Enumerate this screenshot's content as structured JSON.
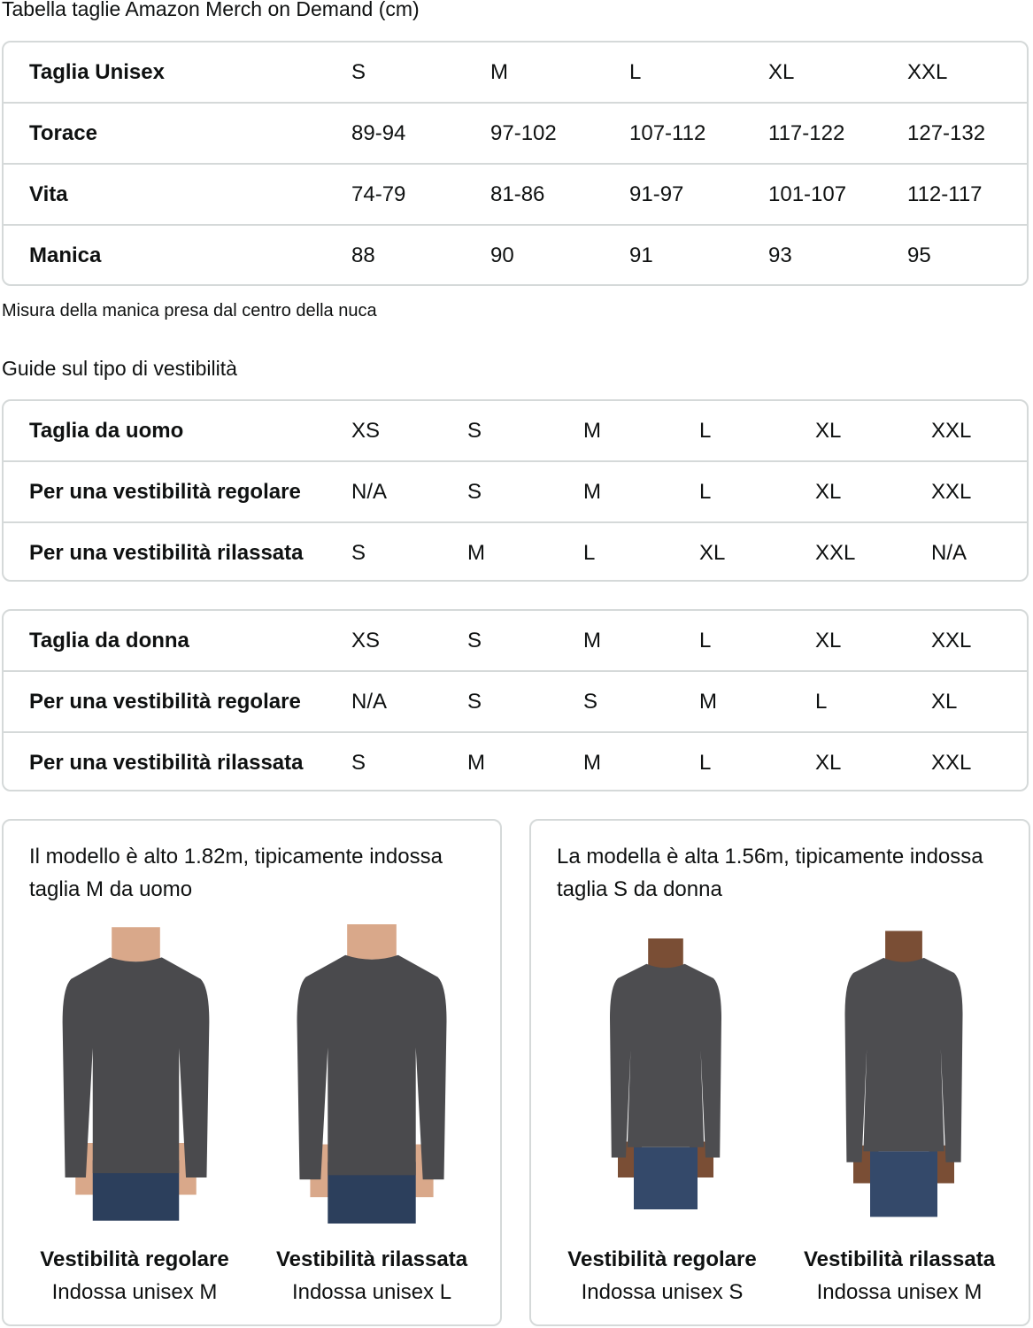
{
  "unisex_table": {
    "title": "Tabella taglie Amazon Merch on Demand (cm)",
    "rows": [
      {
        "label": "Taglia Unisex",
        "values": [
          "S",
          "M",
          "L",
          "XL",
          "XXL"
        ]
      },
      {
        "label": "Torace",
        "values": [
          "89-94",
          "97-102",
          "107-112",
          "117-122",
          "127-132"
        ]
      },
      {
        "label": "Vita",
        "values": [
          "74-79",
          "81-86",
          "91-97",
          "101-107",
          "112-117"
        ]
      },
      {
        "label": "Manica",
        "values": [
          "88",
          "90",
          "91",
          "93",
          "95"
        ]
      }
    ],
    "note": "Misura della manica presa dal centro della nuca"
  },
  "fit_guide": {
    "title": "Guide sul tipo di vestibilità",
    "men": [
      {
        "label": "Taglia da uomo",
        "values": [
          "XS",
          "S",
          "M",
          "L",
          "XL",
          "XXL"
        ]
      },
      {
        "label": "Per una vestibilità regolare",
        "values": [
          "N/A",
          "S",
          "M",
          "L",
          "XL",
          "XXL"
        ]
      },
      {
        "label": "Per una vestibilità rilassata",
        "values": [
          "S",
          "M",
          "L",
          "XL",
          "XXL",
          "N/A"
        ]
      }
    ],
    "women": [
      {
        "label": "Taglia da donna",
        "values": [
          "XS",
          "S",
          "M",
          "L",
          "XL",
          "XXL"
        ]
      },
      {
        "label": "Per una vestibilità regolare",
        "values": [
          "N/A",
          "S",
          "S",
          "M",
          "L",
          "XL"
        ]
      },
      {
        "label": "Per una vestibilità rilassata",
        "values": [
          "S",
          "M",
          "M",
          "L",
          "XL",
          "XXL"
        ]
      }
    ]
  },
  "models": [
    {
      "text": "Il modello è alto 1.82m, tipicamente indossa taglia M da uomo",
      "photos": [
        {
          "fit": "Vestibilità regolare",
          "wears": "Indossa unisex M"
        },
        {
          "fit": "Vestibilità rilassata",
          "wears": "Indossa unisex L"
        }
      ]
    },
    {
      "text": "La modella è alta 1.56m, tipicamente indossa taglia S da donna",
      "photos": [
        {
          "fit": "Vestibilità regolare",
          "wears": "Indossa unisex S"
        },
        {
          "fit": "Vestibilità rilassata",
          "wears": "Indossa unisex M"
        }
      ]
    }
  ],
  "colors": {
    "border": "#d5d9d9",
    "shirt": "#4a4a4d",
    "jeans": "#2c3f5c",
    "skin_m": "#d9a88a",
    "skin_f": "#7a4e35"
  }
}
